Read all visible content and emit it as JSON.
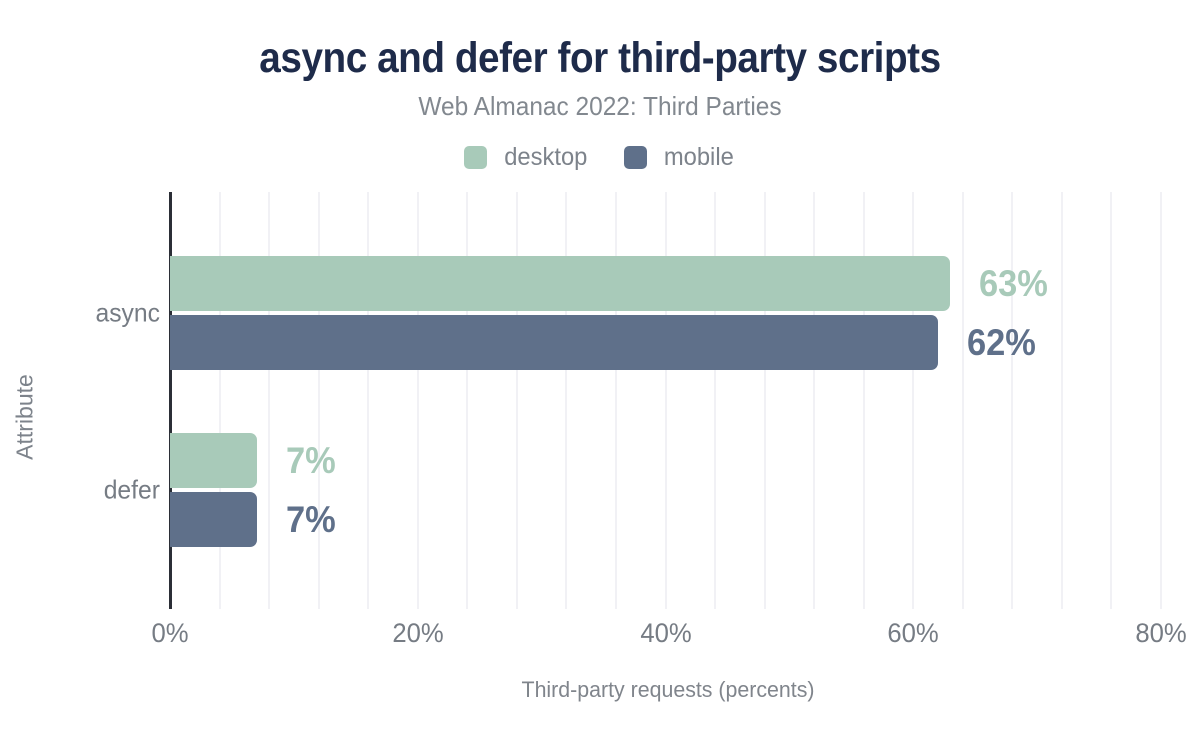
{
  "chart_data": {
    "type": "bar",
    "orientation": "horizontal",
    "title": "async and defer for third-party scripts",
    "subtitle": "Web Almanac 2022: Third Parties",
    "xlabel": "Third-party requests (percents)",
    "ylabel": "Attribute",
    "categories": [
      "async",
      "defer"
    ],
    "series": [
      {
        "name": "desktop",
        "color": "#a8cab9",
        "values": [
          63,
          7
        ]
      },
      {
        "name": "mobile",
        "color": "#5f708a",
        "values": [
          62,
          7
        ]
      }
    ],
    "value_label_format": "percent",
    "xticks": [
      0,
      20,
      40,
      60,
      80
    ],
    "xtick_labels": [
      "0%",
      "20%",
      "40%",
      "60%",
      "80%"
    ],
    "xlim": [
      0,
      82
    ],
    "grid": {
      "minor_step_percent": 4,
      "color": "#f1f1f5",
      "vertical": true
    },
    "legend_position": "top"
  },
  "colors": {
    "title": "#1e2b4a",
    "subtitle": "#82888f",
    "axis_text": "#767c84",
    "axis_line": "#2b2e36",
    "background": "#ffffff"
  }
}
